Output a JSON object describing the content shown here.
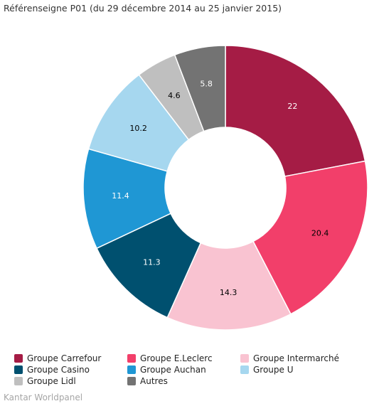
{
  "chart_data": {
    "type": "pie",
    "title": "Référenseigne P01 (du 29 décembre 2014 au 25 janvier 2015)",
    "categories": [
      "Groupe Carrefour",
      "Groupe E.Leclerc",
      "Groupe Intermarché",
      "Groupe Casino",
      "Groupe Auchan",
      "Groupe U",
      "Groupe Lidl",
      "Autres"
    ],
    "values": [
      22,
      20.4,
      14.3,
      11.3,
      11.4,
      10.2,
      4.6,
      5.8
    ],
    "value_labels": [
      "22",
      "20.4",
      "14.3",
      "11.3",
      "11.4",
      "10.2",
      "4.6",
      "5.8"
    ],
    "colors": [
      "#a51c45",
      "#f23f6a",
      "#f9c3d1",
      "#00506f",
      "#1f97d4",
      "#a6d7ef",
      "#bfbfbf",
      "#737373"
    ],
    "label_colors": [
      "#ffffff",
      "#000000",
      "#000000",
      "#ffffff",
      "#ffffff",
      "#000000",
      "#000000",
      "#ffffff"
    ],
    "donut": true,
    "legend_position": "bottom"
  },
  "legend": [
    {
      "label": "Groupe Carrefour",
      "color": "#a51c45"
    },
    {
      "label": "Groupe E.Leclerc",
      "color": "#f23f6a"
    },
    {
      "label": "Groupe Intermarché",
      "color": "#f9c3d1"
    },
    {
      "label": "Groupe Casino",
      "color": "#00506f"
    },
    {
      "label": "Groupe Auchan",
      "color": "#1f97d4"
    },
    {
      "label": "Groupe U",
      "color": "#a6d7ef"
    },
    {
      "label": "Groupe Lidl",
      "color": "#bfbfbf"
    },
    {
      "label": "Autres",
      "color": "#737373"
    }
  ],
  "source": "Kantar Worldpanel"
}
